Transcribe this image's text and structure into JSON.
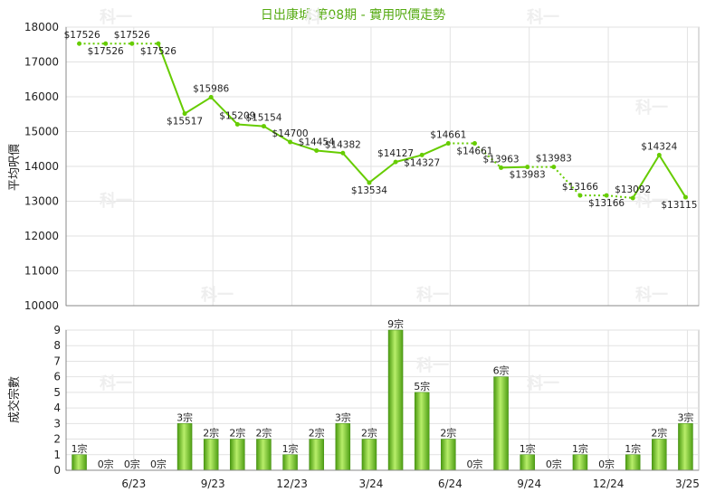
{
  "chart_data": [
    {
      "type": "line",
      "title": "日出康城 第08期 - 實用呎價走勢",
      "ylabel": "平均呎價",
      "ylim": [
        10000,
        18000
      ],
      "yticks": [
        10000,
        11000,
        12000,
        13000,
        14000,
        15000,
        16000,
        17000,
        18000
      ],
      "grid": true,
      "series": [
        {
          "values": [
            17526,
            17526,
            17526,
            17526,
            15517,
            15986,
            15209,
            15154,
            14700,
            14454,
            14382,
            13534,
            14127,
            14327,
            14661,
            14661,
            13963,
            13983,
            13983,
            13166,
            13166,
            13092,
            14324,
            13115
          ],
          "labels": [
            "$17526",
            "$17526",
            "$17526",
            "$17526",
            "$15517",
            "$15986",
            "$15209",
            "$15154",
            "$14700",
            "$14454",
            "$14382",
            "$13534",
            "$14127",
            "$14327",
            "$14661",
            "$14661",
            "$13963",
            "$13983",
            "$13983",
            "$13166",
            "$13166",
            "$13092",
            "$14324",
            "$13115"
          ],
          "interpolated": [
            false,
            true,
            true,
            false,
            false,
            false,
            false,
            false,
            false,
            false,
            false,
            false,
            false,
            false,
            false,
            true,
            false,
            false,
            true,
            false,
            true,
            false,
            false,
            false
          ]
        }
      ],
      "color": "#66cc00"
    },
    {
      "type": "bar",
      "ylabel": "成交宗數",
      "ylim": [
        0,
        9
      ],
      "yticks": [
        0,
        1,
        2,
        3,
        4,
        5,
        6,
        7,
        8,
        9
      ],
      "x_tick_labels": [
        "6/23",
        "9/23",
        "12/23",
        "3/24",
        "6/24",
        "9/24",
        "12/24",
        "3/25"
      ],
      "values": [
        1,
        0,
        0,
        0,
        3,
        2,
        2,
        2,
        1,
        2,
        3,
        2,
        9,
        5,
        2,
        0,
        6,
        1,
        0,
        1,
        0,
        1,
        2,
        3
      ],
      "labels": [
        "1宗",
        "0宗",
        "0宗",
        "0宗",
        "3宗",
        "2宗",
        "2宗",
        "2宗",
        "1宗",
        "2宗",
        "3宗",
        "2宗",
        "9宗",
        "5宗",
        "2宗",
        "0宗",
        "6宗",
        "1宗",
        "0宗",
        "1宗",
        "0宗",
        "1宗",
        "2宗",
        "3宗"
      ],
      "color": "#66bb22"
    }
  ],
  "watermark": "科一"
}
